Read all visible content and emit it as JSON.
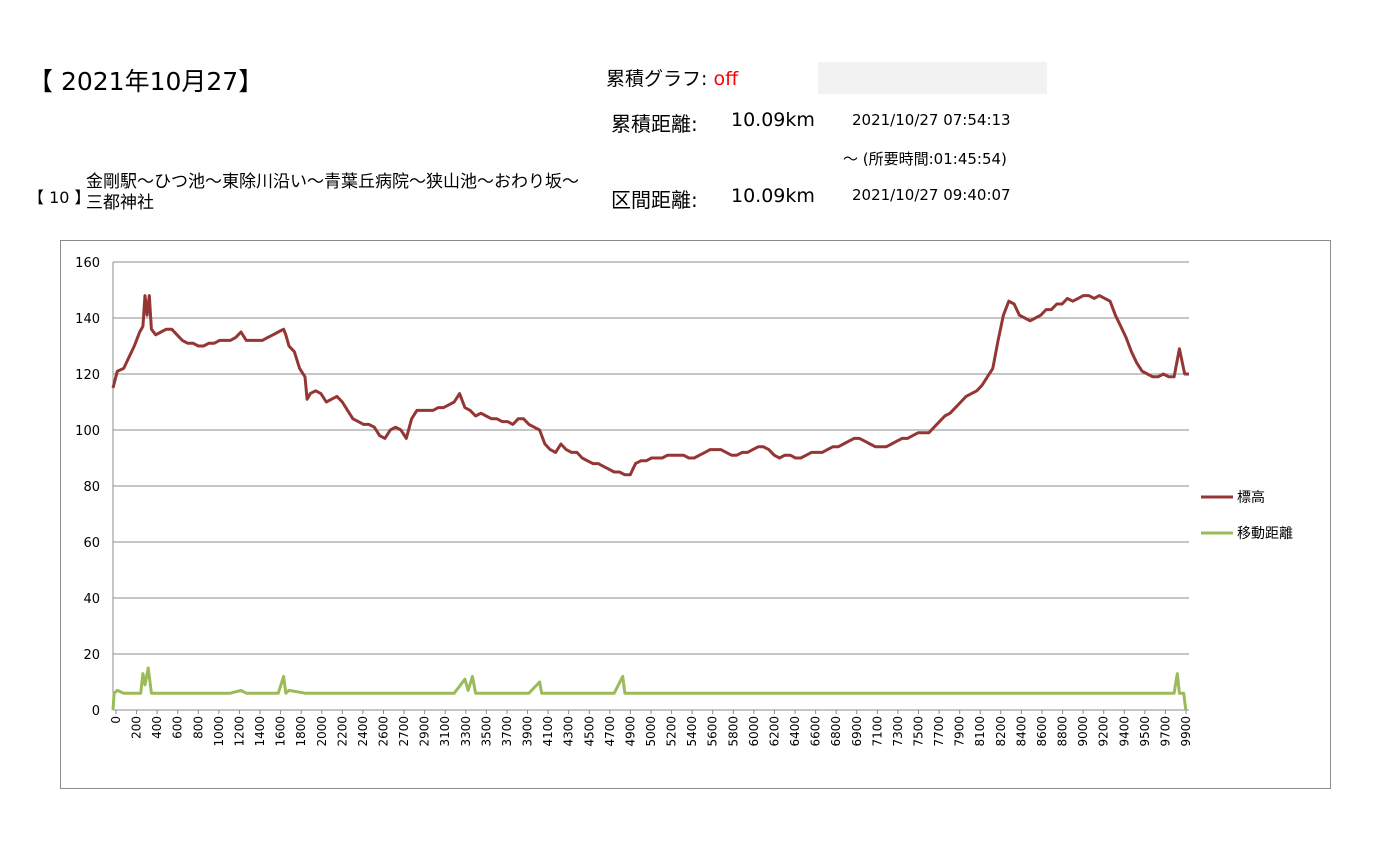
{
  "header": {
    "date_title": "【 2021年10月27】",
    "route_number": "【 10 】",
    "route_name": "金剛駅～ひつ池～東除川沿い～青葉丘病院～狭山池～おわり坂～三都神社",
    "cumulative_graph_label": "累積グラフ: ",
    "cumulative_graph_value": "off",
    "cumulative_distance_label": "累積距離:",
    "cumulative_distance_value": "10.09km",
    "start_time": "2021/10/27 07:54:13",
    "duration": "～ (所要時間:01:45:54)",
    "section_distance_label": "区間距離:",
    "section_distance_value": "10.09km",
    "end_time": "2021/10/27 09:40:07"
  },
  "chart_data": {
    "type": "line",
    "title": "",
    "xlabel": "",
    "ylabel": "",
    "ylim": [
      0,
      160
    ],
    "yticks": [
      0,
      20,
      40,
      60,
      80,
      100,
      120,
      140,
      160
    ],
    "xlim": [
      0,
      10090
    ],
    "xtick_labels": [
      "0",
      "200",
      "400",
      "600",
      "800",
      "1000",
      "1200",
      "1400",
      "1600",
      "1800",
      "2000",
      "2200",
      "2400",
      "2600",
      "2700",
      "2900",
      "3100",
      "3300",
      "3500",
      "3700",
      "3900",
      "4100",
      "4300",
      "4500",
      "4700",
      "4900",
      "5000",
      "5200",
      "5400",
      "5600",
      "5800",
      "6000",
      "6200",
      "6400",
      "6600",
      "6800",
      "6900",
      "7100",
      "7300",
      "7500",
      "7700",
      "7900",
      "8100",
      "8200",
      "8400",
      "8600",
      "8800",
      "9000",
      "9200",
      "9400",
      "9500",
      "9700",
      "9900"
    ],
    "grid": "horizontal",
    "legend": "right",
    "series": [
      {
        "name": "標高",
        "color": "#943634",
        "points": [
          [
            0,
            115
          ],
          [
            40,
            121
          ],
          [
            100,
            122
          ],
          [
            150,
            126
          ],
          [
            200,
            130
          ],
          [
            250,
            135
          ],
          [
            280,
            137
          ],
          [
            300,
            148
          ],
          [
            320,
            141
          ],
          [
            340,
            148
          ],
          [
            360,
            136
          ],
          [
            400,
            134
          ],
          [
            450,
            135
          ],
          [
            500,
            136
          ],
          [
            550,
            136
          ],
          [
            600,
            134
          ],
          [
            650,
            132
          ],
          [
            700,
            131
          ],
          [
            750,
            131
          ],
          [
            800,
            130
          ],
          [
            850,
            130
          ],
          [
            900,
            131
          ],
          [
            950,
            131
          ],
          [
            1000,
            132
          ],
          [
            1050,
            132
          ],
          [
            1100,
            132
          ],
          [
            1150,
            133
          ],
          [
            1200,
            135
          ],
          [
            1250,
            132
          ],
          [
            1300,
            132
          ],
          [
            1350,
            132
          ],
          [
            1400,
            132
          ],
          [
            1450,
            133
          ],
          [
            1500,
            134
          ],
          [
            1550,
            135
          ],
          [
            1600,
            136
          ],
          [
            1620,
            134
          ],
          [
            1650,
            130
          ],
          [
            1700,
            128
          ],
          [
            1750,
            122
          ],
          [
            1800,
            119
          ],
          [
            1820,
            111
          ],
          [
            1850,
            113
          ],
          [
            1900,
            114
          ],
          [
            1950,
            113
          ],
          [
            2000,
            110
          ],
          [
            2050,
            111
          ],
          [
            2100,
            112
          ],
          [
            2150,
            110
          ],
          [
            2200,
            107
          ],
          [
            2250,
            104
          ],
          [
            2300,
            103
          ],
          [
            2350,
            102
          ],
          [
            2400,
            102
          ],
          [
            2450,
            101
          ],
          [
            2500,
            98
          ],
          [
            2550,
            97
          ],
          [
            2600,
            100
          ],
          [
            2650,
            101
          ],
          [
            2700,
            100
          ],
          [
            2750,
            97
          ],
          [
            2800,
            104
          ],
          [
            2850,
            107
          ],
          [
            2900,
            107
          ],
          [
            2950,
            107
          ],
          [
            3000,
            107
          ],
          [
            3050,
            108
          ],
          [
            3100,
            108
          ],
          [
            3150,
            109
          ],
          [
            3200,
            110
          ],
          [
            3250,
            113
          ],
          [
            3300,
            108
          ],
          [
            3350,
            107
          ],
          [
            3400,
            105
          ],
          [
            3450,
            106
          ],
          [
            3500,
            105
          ],
          [
            3550,
            104
          ],
          [
            3600,
            104
          ],
          [
            3650,
            103
          ],
          [
            3700,
            103
          ],
          [
            3750,
            102
          ],
          [
            3800,
            104
          ],
          [
            3850,
            104
          ],
          [
            3900,
            102
          ],
          [
            3950,
            101
          ],
          [
            4000,
            100
          ],
          [
            4050,
            95
          ],
          [
            4100,
            93
          ],
          [
            4150,
            92
          ],
          [
            4200,
            95
          ],
          [
            4250,
            93
          ],
          [
            4300,
            92
          ],
          [
            4350,
            92
          ],
          [
            4400,
            90
          ],
          [
            4450,
            89
          ],
          [
            4500,
            88
          ],
          [
            4550,
            88
          ],
          [
            4600,
            87
          ],
          [
            4650,
            86
          ],
          [
            4700,
            85
          ],
          [
            4750,
            85
          ],
          [
            4800,
            84
          ],
          [
            4850,
            84
          ],
          [
            4900,
            88
          ],
          [
            4950,
            89
          ],
          [
            5000,
            89
          ],
          [
            5050,
            90
          ],
          [
            5100,
            90
          ],
          [
            5150,
            90
          ],
          [
            5200,
            91
          ],
          [
            5250,
            91
          ],
          [
            5300,
            91
          ],
          [
            5350,
            91
          ],
          [
            5400,
            90
          ],
          [
            5450,
            90
          ],
          [
            5500,
            91
          ],
          [
            5550,
            92
          ],
          [
            5600,
            93
          ],
          [
            5650,
            93
          ],
          [
            5700,
            93
          ],
          [
            5750,
            92
          ],
          [
            5800,
            91
          ],
          [
            5850,
            91
          ],
          [
            5900,
            92
          ],
          [
            5950,
            92
          ],
          [
            6000,
            93
          ],
          [
            6050,
            94
          ],
          [
            6100,
            94
          ],
          [
            6150,
            93
          ],
          [
            6200,
            91
          ],
          [
            6250,
            90
          ],
          [
            6300,
            91
          ],
          [
            6350,
            91
          ],
          [
            6400,
            90
          ],
          [
            6450,
            90
          ],
          [
            6500,
            91
          ],
          [
            6550,
            92
          ],
          [
            6600,
            92
          ],
          [
            6650,
            92
          ],
          [
            6700,
            93
          ],
          [
            6750,
            94
          ],
          [
            6800,
            94
          ],
          [
            6850,
            95
          ],
          [
            6900,
            96
          ],
          [
            6950,
            97
          ],
          [
            7000,
            97
          ],
          [
            7050,
            96
          ],
          [
            7100,
            95
          ],
          [
            7150,
            94
          ],
          [
            7200,
            94
          ],
          [
            7250,
            94
          ],
          [
            7300,
            95
          ],
          [
            7350,
            96
          ],
          [
            7400,
            97
          ],
          [
            7450,
            97
          ],
          [
            7500,
            98
          ],
          [
            7550,
            99
          ],
          [
            7600,
            99
          ],
          [
            7650,
            99
          ],
          [
            7700,
            101
          ],
          [
            7750,
            103
          ],
          [
            7800,
            105
          ],
          [
            7850,
            106
          ],
          [
            7900,
            108
          ],
          [
            7950,
            110
          ],
          [
            8000,
            112
          ],
          [
            8050,
            113
          ],
          [
            8100,
            114
          ],
          [
            8150,
            116
          ],
          [
            8200,
            119
          ],
          [
            8250,
            122
          ],
          [
            8300,
            132
          ],
          [
            8350,
            141
          ],
          [
            8400,
            146
          ],
          [
            8450,
            145
          ],
          [
            8500,
            141
          ],
          [
            8550,
            140
          ],
          [
            8600,
            139
          ],
          [
            8650,
            140
          ],
          [
            8700,
            141
          ],
          [
            8750,
            143
          ],
          [
            8800,
            143
          ],
          [
            8850,
            145
          ],
          [
            8900,
            145
          ],
          [
            8950,
            147
          ],
          [
            9000,
            146
          ],
          [
            9050,
            147
          ],
          [
            9100,
            148
          ],
          [
            9150,
            148
          ],
          [
            9200,
            147
          ],
          [
            9250,
            148
          ],
          [
            9300,
            147
          ],
          [
            9350,
            146
          ],
          [
            9400,
            141
          ],
          [
            9450,
            137
          ],
          [
            9500,
            133
          ],
          [
            9550,
            128
          ],
          [
            9600,
            124
          ],
          [
            9650,
            121
          ],
          [
            9700,
            120
          ],
          [
            9750,
            119
          ],
          [
            9800,
            119
          ],
          [
            9850,
            120
          ],
          [
            9900,
            119
          ],
          [
            9950,
            119
          ],
          [
            10000,
            129
          ],
          [
            10050,
            120
          ],
          [
            10090,
            120
          ]
        ]
      },
      {
        "name": "移動距離",
        "color": "#9bbb59",
        "points": [
          [
            0,
            0
          ],
          [
            10,
            6
          ],
          [
            40,
            7
          ],
          [
            100,
            6
          ],
          [
            200,
            6
          ],
          [
            260,
            6
          ],
          [
            280,
            13
          ],
          [
            300,
            9
          ],
          [
            330,
            15
          ],
          [
            360,
            6
          ],
          [
            500,
            6
          ],
          [
            800,
            6
          ],
          [
            1100,
            6
          ],
          [
            1200,
            7
          ],
          [
            1250,
            6
          ],
          [
            1550,
            6
          ],
          [
            1600,
            12
          ],
          [
            1620,
            6
          ],
          [
            1650,
            7
          ],
          [
            1800,
            6
          ],
          [
            2200,
            6
          ],
          [
            2600,
            6
          ],
          [
            2800,
            6
          ],
          [
            3200,
            6
          ],
          [
            3300,
            11
          ],
          [
            3330,
            7
          ],
          [
            3370,
            12
          ],
          [
            3400,
            6
          ],
          [
            3700,
            6
          ],
          [
            3900,
            6
          ],
          [
            4000,
            10
          ],
          [
            4020,
            6
          ],
          [
            4300,
            6
          ],
          [
            4600,
            6
          ],
          [
            4700,
            6
          ],
          [
            4780,
            12
          ],
          [
            4800,
            6
          ],
          [
            5200,
            6
          ],
          [
            5600,
            6
          ],
          [
            6000,
            6
          ],
          [
            6400,
            6
          ],
          [
            6800,
            6
          ],
          [
            7200,
            6
          ],
          [
            7600,
            6
          ],
          [
            8000,
            6
          ],
          [
            8400,
            6
          ],
          [
            8800,
            6
          ],
          [
            9200,
            6
          ],
          [
            9600,
            6
          ],
          [
            9900,
            6
          ],
          [
            9950,
            6
          ],
          [
            9980,
            13
          ],
          [
            10000,
            6
          ],
          [
            10040,
            6
          ],
          [
            10060,
            0
          ]
        ]
      }
    ]
  }
}
